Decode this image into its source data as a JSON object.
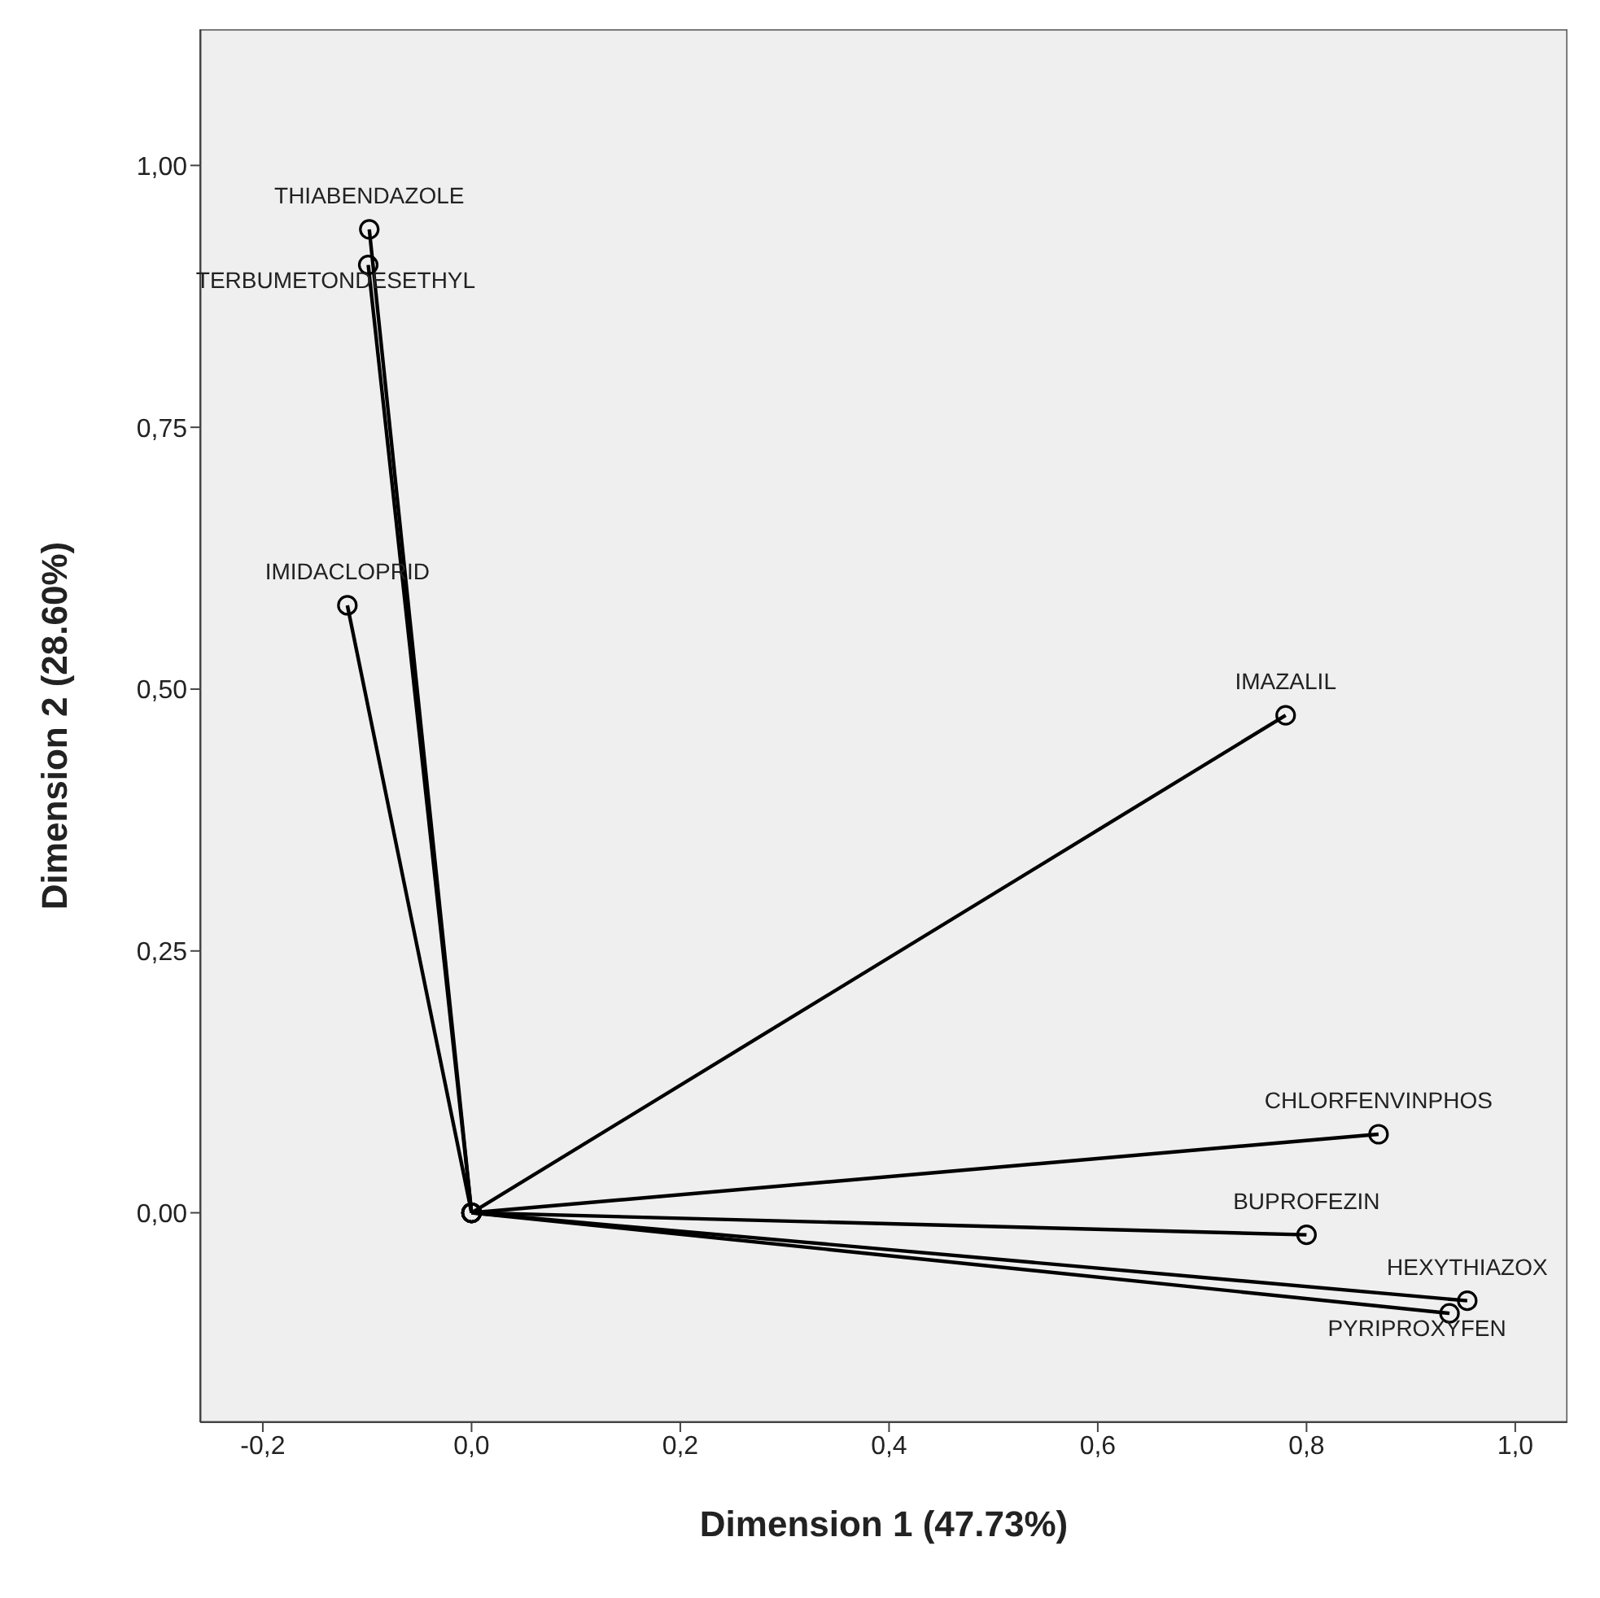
{
  "chart_data": {
    "type": "line",
    "xlabel": "Dimension 1 (47.73%)",
    "ylabel": "Dimension 2 (28.60%)",
    "marker": "circle",
    "line_style": "solid",
    "xlim": [
      -0.26,
      1.05
    ],
    "ylim": [
      -0.2,
      1.13
    ],
    "xticks": [
      {
        "value": -0.2,
        "label": "-0,2"
      },
      {
        "value": 0,
        "label": "0,0"
      },
      {
        "value": 0.2,
        "label": "0,2"
      },
      {
        "value": 0.4,
        "label": "0,4"
      },
      {
        "value": 0.6,
        "label": "0,6"
      },
      {
        "value": 0.8,
        "label": "0,8"
      },
      {
        "value": 1,
        "label": "1,0"
      }
    ],
    "yticks": [
      {
        "value": 0,
        "label": "0,00"
      },
      {
        "value": 0.25,
        "label": "0,25"
      },
      {
        "value": 0.5,
        "label": "0,50"
      },
      {
        "value": 0.75,
        "label": "0,75"
      },
      {
        "value": 1,
        "label": "1,00"
      }
    ],
    "series": [
      {
        "name": "THIABENDAZOLE",
        "color": "#000000",
        "x": [
          0,
          -0.098
        ],
        "values": [
          0,
          0.939
        ]
      },
      {
        "name": "TERBUMETONDESETHYL",
        "color": "#000000",
        "x": [
          0,
          -0.099
        ],
        "values": [
          0,
          0.905
        ]
      },
      {
        "name": "IMIDACLOPRID",
        "color": "#000000",
        "x": [
          0,
          -0.119
        ],
        "values": [
          0,
          0.58
        ]
      },
      {
        "name": "IMAZALIL",
        "color": "#000000",
        "x": [
          0,
          0.78
        ],
        "values": [
          0,
          0.475
        ]
      },
      {
        "name": "CHLORFENVINPHOS",
        "color": "#000000",
        "x": [
          0,
          0.869
        ],
        "values": [
          0,
          0.075
        ]
      },
      {
        "name": "BUPROFEZIN",
        "color": "#000000",
        "x": [
          0,
          0.8
        ],
        "values": [
          0,
          -0.021
        ]
      },
      {
        "name": "HEXYTHIAZOX",
        "color": "#000000",
        "x": [
          0,
          0.954
        ],
        "values": [
          0,
          -0.084
        ]
      },
      {
        "name": "PYRIPROXYFEN",
        "color": "#000000",
        "x": [
          0,
          0.937
        ],
        "values": [
          0,
          -0.096
        ]
      }
    ]
  }
}
